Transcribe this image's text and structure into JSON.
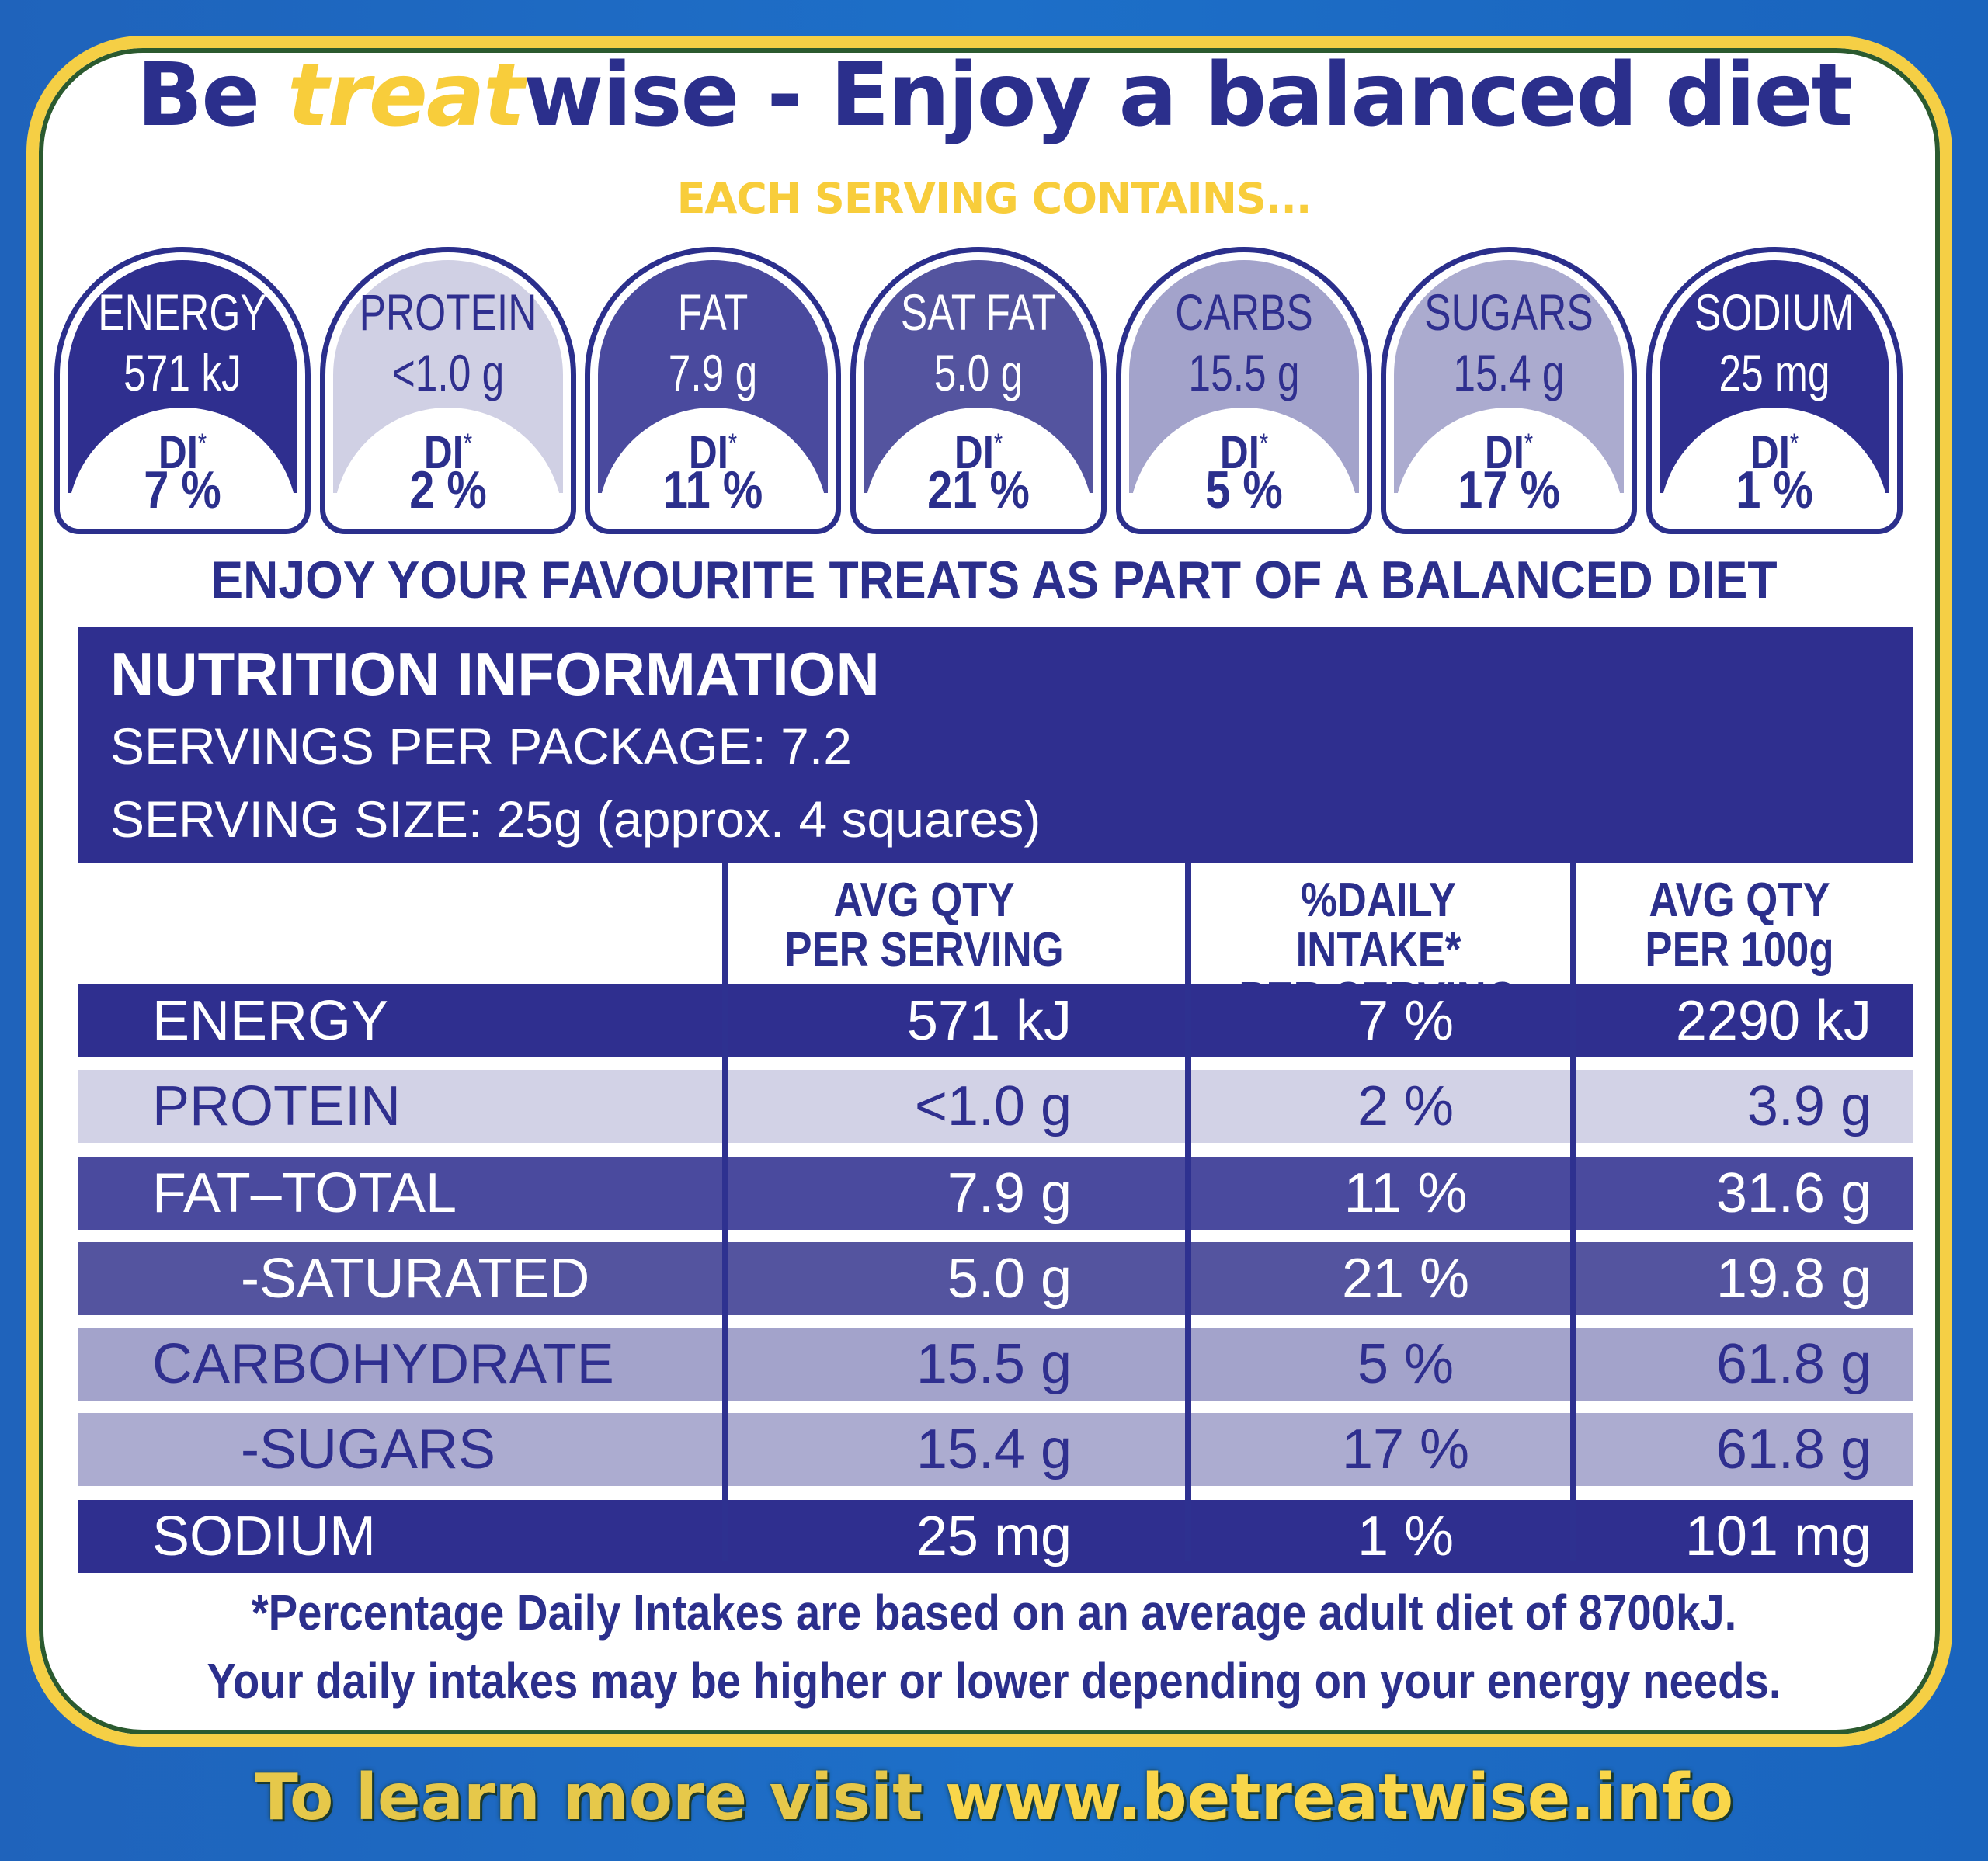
{
  "headline": {
    "before": "Be ",
    "treat": "treat",
    "after": "wise - Enjoy a balanced diet"
  },
  "subhead": "EACH SERVING CONTAINS...",
  "gda": [
    {
      "name": "ENERGY",
      "qty": "571 kJ",
      "di": "DI",
      "pct": "7 %",
      "color": "#2f2f8f",
      "text": "#ffffff"
    },
    {
      "name": "PROTEIN",
      "qty": "<1.0 g",
      "di": "DI",
      "pct": "2 %",
      "color": "#d0d0e4",
      "text": "#2f2f8f"
    },
    {
      "name": "FAT",
      "qty": "7.9 g",
      "di": "DI",
      "pct": "11 %",
      "color": "#4a4a9e",
      "text": "#ffffff"
    },
    {
      "name": "SAT FAT",
      "qty": "5.0 g",
      "di": "DI",
      "pct": "21 %",
      "color": "#54549f",
      "text": "#ffffff"
    },
    {
      "name": "CARBS",
      "qty": "15.5 g",
      "di": "DI",
      "pct": "5 %",
      "color": "#a3a3cb",
      "text": "#2f2f8f"
    },
    {
      "name": "SUGARS",
      "qty": "15.4 g",
      "di": "DI",
      "pct": "17 %",
      "color": "#ababcf",
      "text": "#2f2f8f"
    },
    {
      "name": "SODIUM",
      "qty": "25 mg",
      "di": "DI",
      "pct": "1 %",
      "color": "#2f2f8f",
      "text": "#ffffff"
    }
  ],
  "enjoy": "ENJOY YOUR FAVOURITE TREATS AS PART OF A BALANCED DIET",
  "nutrition": {
    "title": "NUTRITION INFORMATION",
    "servings": "SERVINGS PER PACKAGE: 7.2",
    "serving_size": "SERVING SIZE: 25g (approx. 4 squares)",
    "col1": [
      "AVG QTY",
      "PER SERVING"
    ],
    "col2": [
      "%DAILY INTAKE*",
      "PER SERVING"
    ],
    "col3": [
      "AVG QTY",
      "PER 100g"
    ],
    "rows": [
      {
        "label": "ENERGY",
        "serving": "571 kJ",
        "di": "7 %",
        "per100": "2290 kJ",
        "bg": "#2f2f8f",
        "fg": "#ffffff",
        "indent": false
      },
      {
        "label": "PROTEIN",
        "serving": "<1.0 g",
        "di": "2 %",
        "per100": "3.9 g",
        "bg": "#d2d2e6",
        "fg": "#2f2f8f",
        "indent": false
      },
      {
        "label": "FAT–TOTAL",
        "serving": "7.9 g",
        "di": "11 %",
        "per100": "31.6 g",
        "bg": "#4a4a9e",
        "fg": "#ffffff",
        "indent": false
      },
      {
        "label": "-SATURATED",
        "serving": "5.0 g",
        "di": "21 %",
        "per100": "19.8 g",
        "bg": "#54549f",
        "fg": "#ffffff",
        "indent": true
      },
      {
        "label": "CARBOHYDRATE",
        "serving": "15.5 g",
        "di": "5 %",
        "per100": "61.8 g",
        "bg": "#a3a3cb",
        "fg": "#2f2f8f",
        "indent": false
      },
      {
        "label": "-SUGARS",
        "serving": "15.4 g",
        "di": "17 %",
        "per100": "61.8 g",
        "bg": "#acacd0",
        "fg": "#2f2f8f",
        "indent": true
      },
      {
        "label": "SODIUM",
        "serving": "25 mg",
        "di": "1 %",
        "per100": "101 mg",
        "bg": "#2f2f8f",
        "fg": "#ffffff",
        "indent": false
      }
    ]
  },
  "footnote": [
    "*Percentage Daily Intakes are based on an average adult diet of 8700kJ.",
    "Your daily intakes may be higher or lower depending on your energy needs."
  ],
  "learn": {
    "prefix": "To learn more visit ",
    "url": "www.betreatwise.info"
  },
  "colors": {
    "navy": "#2f2f8f",
    "yellow": "#f5cf45",
    "blue_bg": "#1d6fc8"
  }
}
